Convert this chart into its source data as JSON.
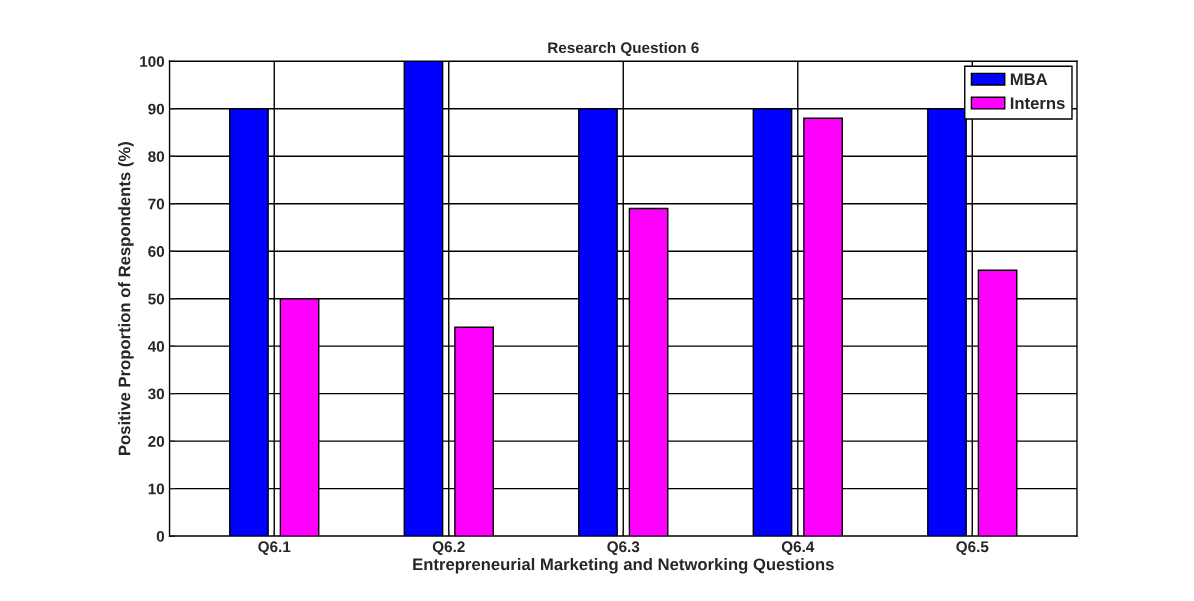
{
  "chart_data": {
    "type": "bar",
    "title": "Research Question 6",
    "xlabel": "Entrepreneurial Marketing and Networking Questions",
    "ylabel": "Positive Proportion of Respondents (%)",
    "categories": [
      "Q6.1",
      "Q6.2",
      "Q6.3",
      "Q6.4",
      "Q6.5"
    ],
    "series": [
      {
        "name": "MBA",
        "color": "#0000ff",
        "values": [
          90,
          100,
          90,
          90,
          90
        ]
      },
      {
        "name": "Interns",
        "color": "#ff00ff",
        "values": [
          50,
          44,
          69,
          88,
          56
        ]
      }
    ],
    "ylim": [
      0,
      100
    ],
    "yticks": [
      0,
      10,
      20,
      30,
      40,
      50,
      60,
      70,
      80,
      90,
      100
    ],
    "grid": true,
    "legend": "top right"
  }
}
